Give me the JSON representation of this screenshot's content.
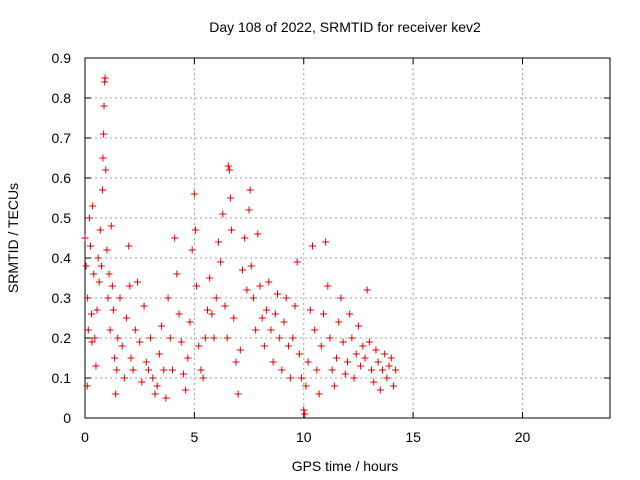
{
  "chart_data": {
    "type": "scatter",
    "title": "Day 108 of 2022, SRMTID for receiver kev2",
    "xlabel": "GPS time / hours",
    "ylabel": "SRMTID / TECUs",
    "xlim": [
      0,
      24
    ],
    "ylim": [
      0,
      0.9
    ],
    "xticks": [
      "0",
      "5",
      "10",
      "15",
      "20"
    ],
    "yticks": [
      "0",
      "0.1",
      "0.2",
      "0.3",
      "0.4",
      "0.5",
      "0.6",
      "0.7",
      "0.8",
      "0.9"
    ],
    "grid": true,
    "marker": "+",
    "color": "#e00000",
    "series": [
      {
        "name": "SRMTID",
        "points": [
          [
            0.0,
            0.45
          ],
          [
            0.05,
            0.38
          ],
          [
            0.1,
            0.08
          ],
          [
            0.12,
            0.3
          ],
          [
            0.15,
            0.22
          ],
          [
            0.2,
            0.5
          ],
          [
            0.25,
            0.43
          ],
          [
            0.3,
            0.26
          ],
          [
            0.32,
            0.19
          ],
          [
            0.35,
            0.53
          ],
          [
            0.4,
            0.36
          ],
          [
            0.45,
            0.2
          ],
          [
            0.5,
            0.13
          ],
          [
            0.55,
            0.27
          ],
          [
            0.6,
            0.4
          ],
          [
            0.65,
            0.34
          ],
          [
            0.7,
            0.47
          ],
          [
            0.75,
            0.38
          ],
          [
            0.8,
            0.57
          ],
          [
            0.82,
            0.65
          ],
          [
            0.85,
            0.71
          ],
          [
            0.87,
            0.78
          ],
          [
            0.9,
            0.84
          ],
          [
            0.92,
            0.85
          ],
          [
            0.95,
            0.62
          ],
          [
            1.0,
            0.42
          ],
          [
            1.05,
            0.3
          ],
          [
            1.1,
            0.36
          ],
          [
            1.15,
            0.22
          ],
          [
            1.2,
            0.48
          ],
          [
            1.25,
            0.33
          ],
          [
            1.3,
            0.27
          ],
          [
            1.35,
            0.15
          ],
          [
            1.4,
            0.06
          ],
          [
            1.45,
            0.12
          ],
          [
            1.5,
            0.2
          ],
          [
            1.6,
            0.3
          ],
          [
            1.7,
            0.18
          ],
          [
            1.8,
            0.1
          ],
          [
            1.9,
            0.25
          ],
          [
            2.0,
            0.43
          ],
          [
            2.05,
            0.33
          ],
          [
            2.1,
            0.15
          ],
          [
            2.2,
            0.12
          ],
          [
            2.3,
            0.22
          ],
          [
            2.4,
            0.34
          ],
          [
            2.5,
            0.19
          ],
          [
            2.6,
            0.09
          ],
          [
            2.7,
            0.28
          ],
          [
            2.8,
            0.14
          ],
          [
            2.9,
            0.12
          ],
          [
            3.0,
            0.2
          ],
          [
            3.1,
            0.1
          ],
          [
            3.2,
            0.06
          ],
          [
            3.3,
            0.08
          ],
          [
            3.4,
            0.16
          ],
          [
            3.5,
            0.23
          ],
          [
            3.6,
            0.12
          ],
          [
            3.7,
            0.05
          ],
          [
            3.8,
            0.3
          ],
          [
            3.9,
            0.2
          ],
          [
            4.0,
            0.12
          ],
          [
            4.1,
            0.45
          ],
          [
            4.2,
            0.36
          ],
          [
            4.3,
            0.26
          ],
          [
            4.4,
            0.19
          ],
          [
            4.5,
            0.11
          ],
          [
            4.6,
            0.07
          ],
          [
            4.7,
            0.15
          ],
          [
            4.8,
            0.24
          ],
          [
            4.9,
            0.42
          ],
          [
            5.0,
            0.56
          ],
          [
            5.05,
            0.47
          ],
          [
            5.1,
            0.33
          ],
          [
            5.2,
            0.18
          ],
          [
            5.3,
            0.12
          ],
          [
            5.4,
            0.1
          ],
          [
            5.5,
            0.2
          ],
          [
            5.6,
            0.27
          ],
          [
            5.7,
            0.35
          ],
          [
            5.8,
            0.26
          ],
          [
            5.9,
            0.2
          ],
          [
            6.0,
            0.3
          ],
          [
            6.1,
            0.44
          ],
          [
            6.2,
            0.39
          ],
          [
            6.3,
            0.51
          ],
          [
            6.4,
            0.28
          ],
          [
            6.5,
            0.2
          ],
          [
            6.55,
            0.63
          ],
          [
            6.6,
            0.62
          ],
          [
            6.65,
            0.55
          ],
          [
            6.7,
            0.47
          ],
          [
            6.8,
            0.25
          ],
          [
            6.9,
            0.14
          ],
          [
            7.0,
            0.06
          ],
          [
            7.1,
            0.17
          ],
          [
            7.2,
            0.37
          ],
          [
            7.3,
            0.45
          ],
          [
            7.4,
            0.32
          ],
          [
            7.5,
            0.52
          ],
          [
            7.55,
            0.57
          ],
          [
            7.6,
            0.38
          ],
          [
            7.7,
            0.3
          ],
          [
            7.8,
            0.22
          ],
          [
            7.9,
            0.46
          ],
          [
            8.0,
            0.33
          ],
          [
            8.1,
            0.25
          ],
          [
            8.2,
            0.18
          ],
          [
            8.3,
            0.27
          ],
          [
            8.4,
            0.34
          ],
          [
            8.5,
            0.22
          ],
          [
            8.6,
            0.14
          ],
          [
            8.7,
            0.26
          ],
          [
            8.8,
            0.31
          ],
          [
            8.9,
            0.2
          ],
          [
            9.0,
            0.12
          ],
          [
            9.1,
            0.24
          ],
          [
            9.2,
            0.3
          ],
          [
            9.3,
            0.18
          ],
          [
            9.4,
            0.1
          ],
          [
            9.5,
            0.2
          ],
          [
            9.6,
            0.28
          ],
          [
            9.7,
            0.39
          ],
          [
            9.8,
            0.16
          ],
          [
            9.9,
            0.1
          ],
          [
            10.0,
            0.02
          ],
          [
            10.05,
            0.01
          ],
          [
            10.1,
            0.08
          ],
          [
            10.2,
            0.14
          ],
          [
            10.3,
            0.27
          ],
          [
            10.4,
            0.43
          ],
          [
            10.5,
            0.22
          ],
          [
            10.6,
            0.12
          ],
          [
            10.7,
            0.06
          ],
          [
            10.8,
            0.18
          ],
          [
            10.9,
            0.26
          ],
          [
            11.0,
            0.44
          ],
          [
            11.1,
            0.33
          ],
          [
            11.2,
            0.2
          ],
          [
            11.3,
            0.12
          ],
          [
            11.4,
            0.08
          ],
          [
            11.5,
            0.15
          ],
          [
            11.6,
            0.24
          ],
          [
            11.7,
            0.3
          ],
          [
            11.8,
            0.19
          ],
          [
            11.9,
            0.11
          ],
          [
            12.0,
            0.14
          ],
          [
            12.1,
            0.26
          ],
          [
            12.2,
            0.2
          ],
          [
            12.3,
            0.1
          ],
          [
            12.4,
            0.16
          ],
          [
            12.5,
            0.23
          ],
          [
            12.6,
            0.13
          ],
          [
            12.7,
            0.18
          ],
          [
            12.8,
            0.15
          ],
          [
            12.9,
            0.32
          ],
          [
            13.0,
            0.19
          ],
          [
            13.1,
            0.12
          ],
          [
            13.2,
            0.09
          ],
          [
            13.3,
            0.17
          ],
          [
            13.4,
            0.14
          ],
          [
            13.5,
            0.07
          ],
          [
            13.6,
            0.12
          ],
          [
            13.7,
            0.16
          ],
          [
            13.8,
            0.1
          ],
          [
            13.9,
            0.13
          ],
          [
            14.0,
            0.15
          ],
          [
            14.1,
            0.08
          ],
          [
            14.2,
            0.12
          ]
        ]
      }
    ]
  }
}
